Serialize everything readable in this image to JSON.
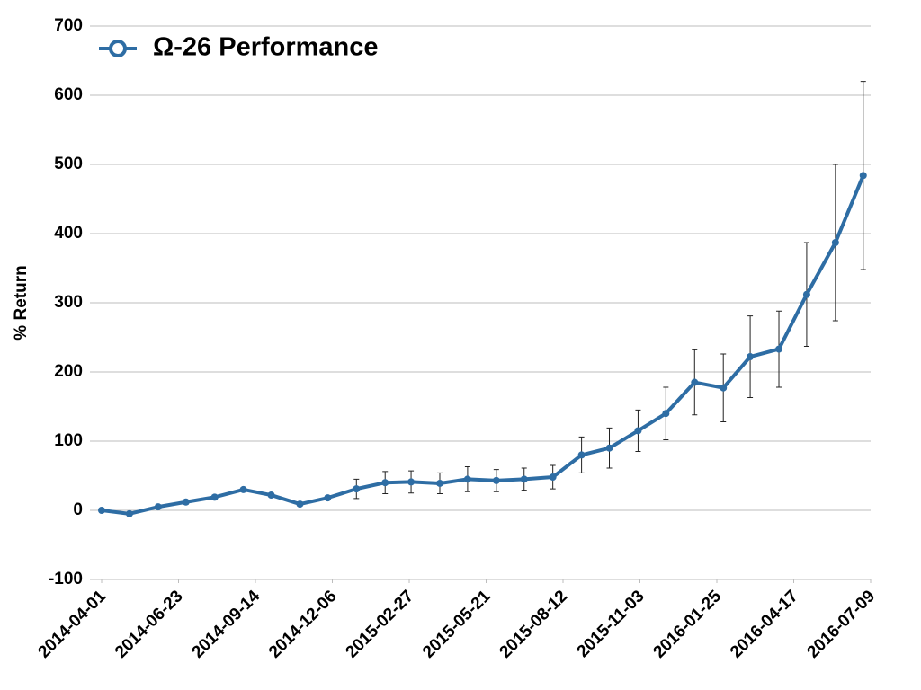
{
  "chart_data": {
    "type": "line",
    "ylabel": "% Return",
    "x": [
      "2014-04-01",
      "2014-05-01",
      "2014-06-01",
      "2014-07-01",
      "2014-08-01",
      "2014-09-01",
      "2014-10-01",
      "2014-11-01",
      "2014-12-01",
      "2015-01-01",
      "2015-02-01",
      "2015-03-01",
      "2015-04-01",
      "2015-05-01",
      "2015-06-01",
      "2015-07-01",
      "2015-08-01",
      "2015-09-01",
      "2015-10-01",
      "2015-11-01",
      "2015-12-01",
      "2016-01-01",
      "2016-02-01",
      "2016-03-01",
      "2016-04-01",
      "2016-05-01",
      "2016-06-01",
      "2016-07-01"
    ],
    "series": [
      {
        "name": "Ω-26 Performance",
        "color": "#2e6da4",
        "values": [
          0,
          -5,
          5,
          12,
          19,
          30,
          22,
          9,
          18,
          31,
          40,
          41,
          39,
          45,
          43,
          45,
          48,
          80,
          90,
          115,
          140,
          185,
          177,
          222,
          233,
          312,
          387,
          484
        ],
        "errors": [
          0,
          2,
          3,
          3,
          3,
          3,
          3,
          3,
          3,
          14,
          16,
          16,
          15,
          18,
          16,
          16,
          17,
          26,
          29,
          30,
          38,
          47,
          49,
          59,
          55,
          75,
          113,
          136
        ]
      }
    ],
    "xlim": [
      "2014-04-01",
      "2016-07-09"
    ],
    "xticks": [
      "2014-04-01",
      "2014-06-23",
      "2014-09-14",
      "2014-12-06",
      "2015-02-27",
      "2015-05-21",
      "2015-08-12",
      "2015-11-03",
      "2016-01-25",
      "2016-04-17",
      "2016-07-09"
    ],
    "ylim": [
      -100,
      700
    ],
    "yticks": [
      -100,
      0,
      100,
      200,
      300,
      400,
      500,
      600,
      700
    ],
    "grid": true,
    "legend": "upper left"
  }
}
